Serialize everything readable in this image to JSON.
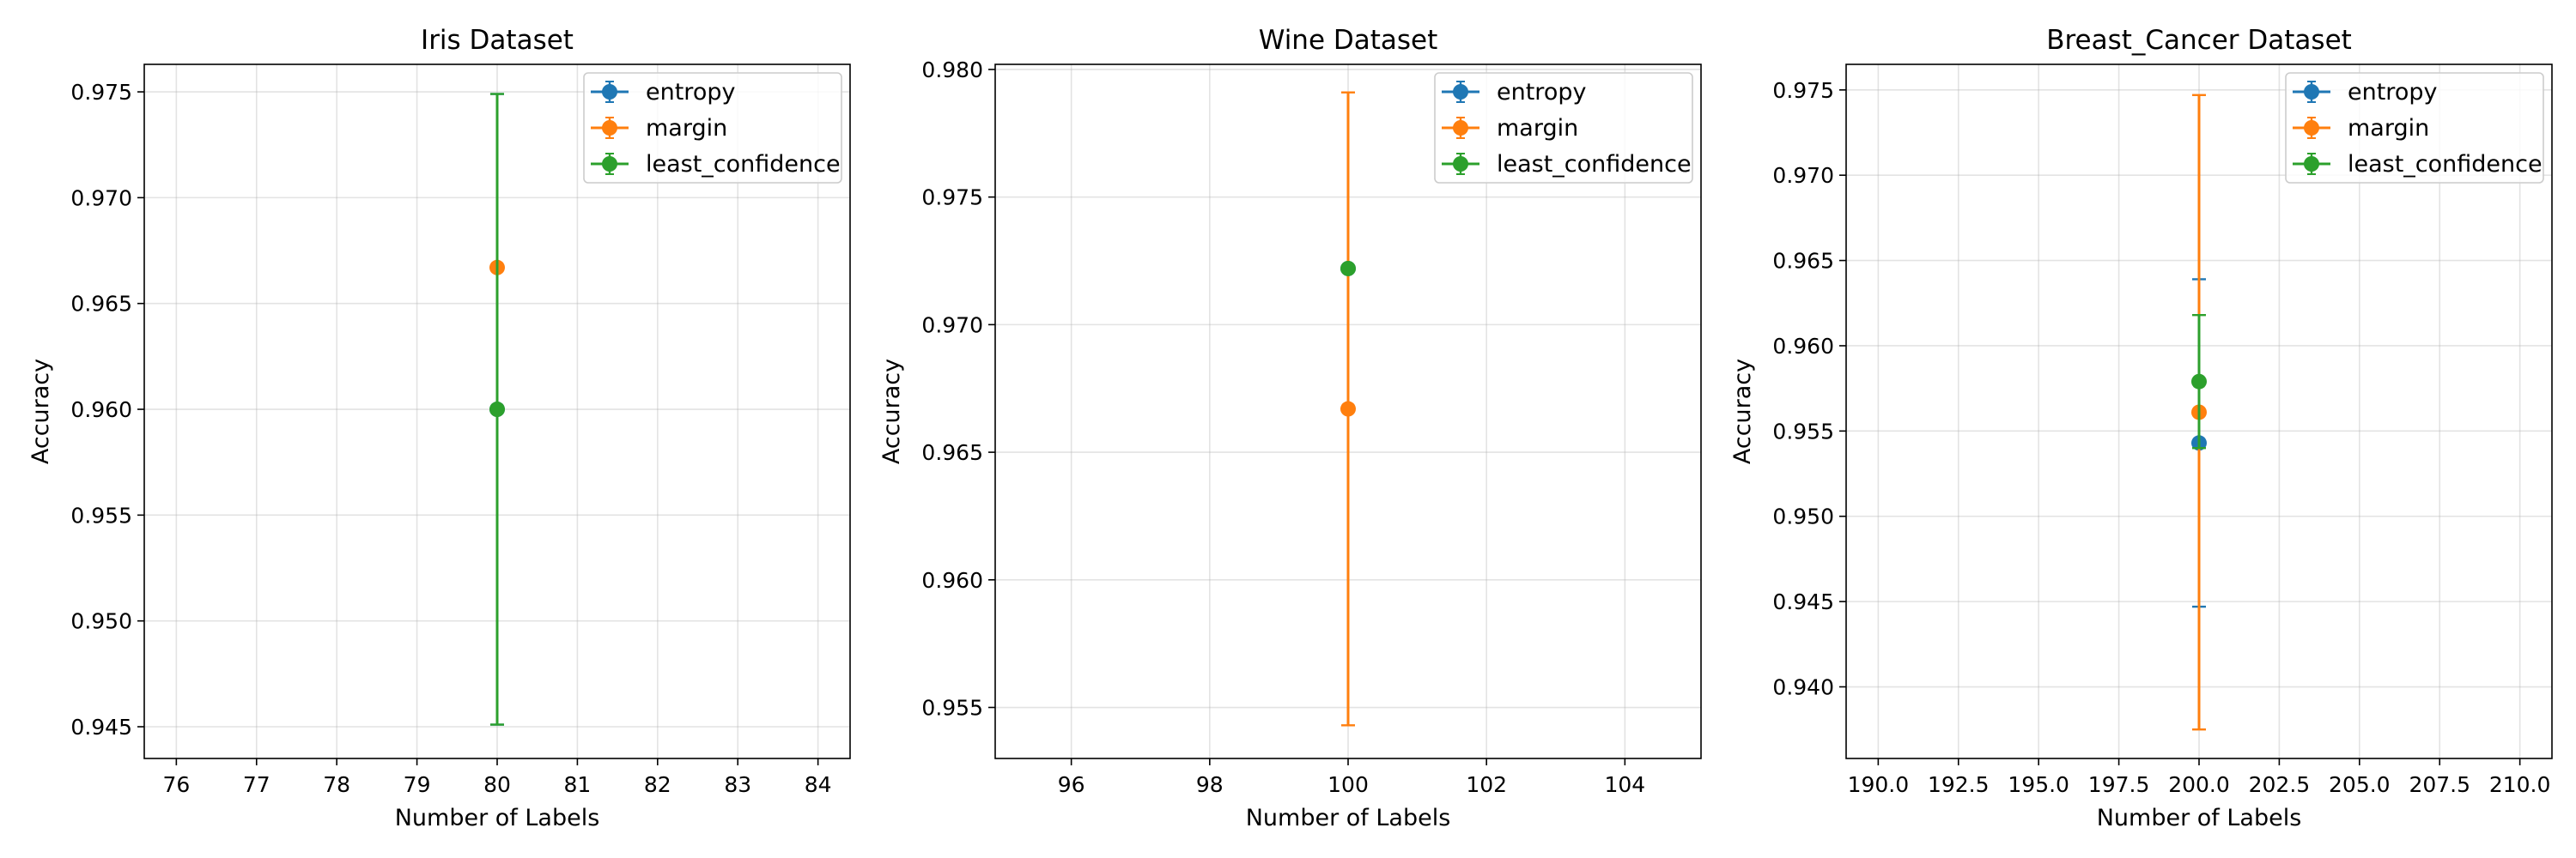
{
  "chart_data": [
    {
      "type": "scatter",
      "title": "Iris Dataset",
      "xlabel": "Number of Labels",
      "ylabel": "Accuracy",
      "xlim": [
        75.6,
        84.4
      ],
      "ylim": [
        0.9435,
        0.9763
      ],
      "xticks": [
        76,
        77,
        78,
        79,
        80,
        81,
        82,
        83,
        84
      ],
      "xtick_labels": [
        "76",
        "77",
        "78",
        "79",
        "80",
        "81",
        "82",
        "83",
        "84"
      ],
      "yticks": [
        0.945,
        0.95,
        0.955,
        0.96,
        0.965,
        0.97,
        0.975
      ],
      "ytick_labels": [
        "0.945",
        "0.950",
        "0.955",
        "0.960",
        "0.965",
        "0.970",
        "0.975"
      ],
      "grid": true,
      "legend_position": "upper right",
      "series": [
        {
          "name": "entropy",
          "x": [
            80
          ],
          "y": [
            0.96
          ],
          "yerr": [
            0.0149
          ]
        },
        {
          "name": "margin",
          "x": [
            80
          ],
          "y": [
            0.9667
          ],
          "yerr": [
            0.0
          ]
        },
        {
          "name": "least_confidence",
          "x": [
            80
          ],
          "y": [
            0.96
          ],
          "yerr": [
            0.0149
          ]
        }
      ]
    },
    {
      "type": "scatter",
      "title": "Wine Dataset",
      "xlabel": "Number of Labels",
      "ylabel": "Accuracy",
      "xlim": [
        94.9,
        105.1
      ],
      "ylim": [
        0.953,
        0.9802
      ],
      "xticks": [
        96,
        98,
        100,
        102,
        104
      ],
      "xtick_labels": [
        "96",
        "98",
        "100",
        "102",
        "104"
      ],
      "yticks": [
        0.955,
        0.96,
        0.965,
        0.97,
        0.975,
        0.98
      ],
      "ytick_labels": [
        "0.955",
        "0.960",
        "0.965",
        "0.970",
        "0.975",
        "0.980"
      ],
      "grid": true,
      "legend_position": "upper right",
      "series": [
        {
          "name": "entropy",
          "x": [
            100
          ],
          "y": [
            0.9722
          ],
          "yerr": [
            0.0
          ]
        },
        {
          "name": "margin",
          "x": [
            100
          ],
          "y": [
            0.9667
          ],
          "yerr": [
            0.0124
          ]
        },
        {
          "name": "least_confidence",
          "x": [
            100
          ],
          "y": [
            0.9722
          ],
          "yerr": [
            0.0
          ]
        }
      ]
    },
    {
      "type": "scatter",
      "title": "Breast_Cancer Dataset",
      "xlabel": "Number of Labels",
      "ylabel": "Accuracy",
      "xlim": [
        189.0,
        211.0
      ],
      "ylim": [
        0.9358,
        0.9765
      ],
      "xticks": [
        190.0,
        192.5,
        195.0,
        197.5,
        200.0,
        202.5,
        205.0,
        207.5,
        210.0
      ],
      "xtick_labels": [
        "190.0",
        "192.5",
        "195.0",
        "197.5",
        "200.0",
        "202.5",
        "205.0",
        "207.5",
        "210.0"
      ],
      "yticks": [
        0.94,
        0.945,
        0.95,
        0.955,
        0.96,
        0.965,
        0.97,
        0.975
      ],
      "ytick_labels": [
        "0.940",
        "0.945",
        "0.950",
        "0.955",
        "0.960",
        "0.965",
        "0.970",
        "0.975"
      ],
      "grid": true,
      "legend_position": "upper right",
      "series": [
        {
          "name": "entropy",
          "x": [
            200
          ],
          "y": [
            0.9543
          ],
          "yerr": [
            0.0096
          ]
        },
        {
          "name": "margin",
          "x": [
            200
          ],
          "y": [
            0.9561
          ],
          "yerr": [
            0.0186
          ]
        },
        {
          "name": "least_confidence",
          "x": [
            200
          ],
          "y": [
            0.9579
          ],
          "yerr": [
            0.0039
          ]
        }
      ]
    }
  ],
  "colors": {
    "entropy": "#1f77b4",
    "margin": "#ff7f0e",
    "least_confidence": "#2ca02c"
  }
}
